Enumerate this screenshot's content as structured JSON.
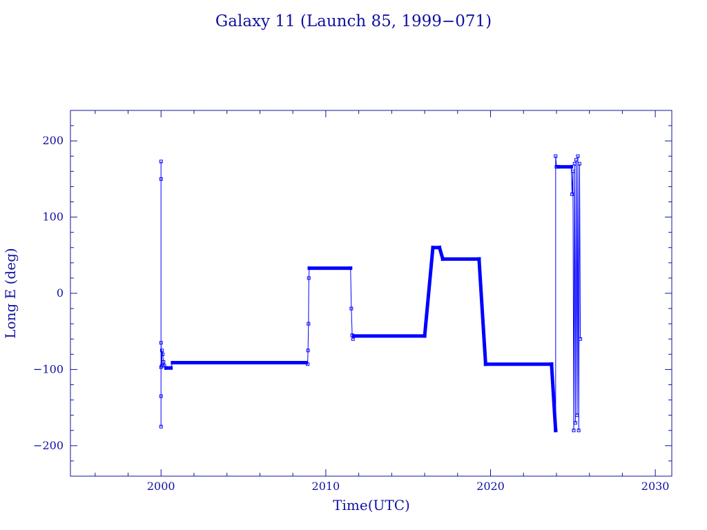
{
  "chart_data": {
    "type": "line",
    "title": "Galaxy 11 (Launch 85, 1999−071)",
    "xlabel": "Time(UTC)",
    "ylabel": "Long E (deg)",
    "xlim": [
      1994.5,
      2031.0
    ],
    "ylim": [
      -240,
      240
    ],
    "x_ticks": [
      2000,
      2010,
      2020,
      2030
    ],
    "x_tick_labels": [
      "2000",
      "2010",
      "2020",
      "2030"
    ],
    "y_ticks": [
      200,
      100,
      0,
      -100,
      -200
    ],
    "y_tick_labels": [
      "200",
      "100",
      "0",
      "−100",
      "−200"
    ],
    "grid": false,
    "colors": {
      "axes": "#1010a0",
      "series": "#0000ff"
    },
    "series": [
      {
        "x": [
          2000.0,
          2000.0,
          2000.0,
          2000.0,
          2000.0,
          2000.0,
          2000.05,
          2000.05,
          2000.1,
          2000.15,
          2000.2,
          2000.3,
          2000.6,
          2000.7,
          2008.8,
          2008.9,
          2008.92,
          2008.95,
          2008.97,
          2009.0,
          2011.5,
          2011.55,
          2011.6,
          2011.65,
          2011.7,
          2016.0,
          2016.5,
          2016.9,
          2017.1,
          2019.3,
          2019.7,
          2023.7,
          2023.95,
          2023.95,
          2024.0,
          2024.1,
          2024.9,
          2024.95,
          2025.0,
          2025.05,
          2025.1,
          2025.15,
          2025.2,
          2025.25,
          2025.3,
          2025.35,
          2025.4,
          2025.45
        ],
        "y": [
          -97,
          173,
          -175,
          150,
          -135,
          -65,
          -95,
          -75,
          -80,
          -90,
          -95,
          -98,
          -98,
          -91,
          -91,
          -93,
          -75,
          -40,
          20,
          33,
          33,
          -20,
          -55,
          -60,
          -56,
          -56,
          60,
          60,
          45,
          45,
          -93,
          -93,
          -180,
          180,
          166,
          166,
          166,
          130,
          160,
          -180,
          170,
          -170,
          175,
          -160,
          180,
          -180,
          170,
          -60
        ]
      }
    ]
  }
}
